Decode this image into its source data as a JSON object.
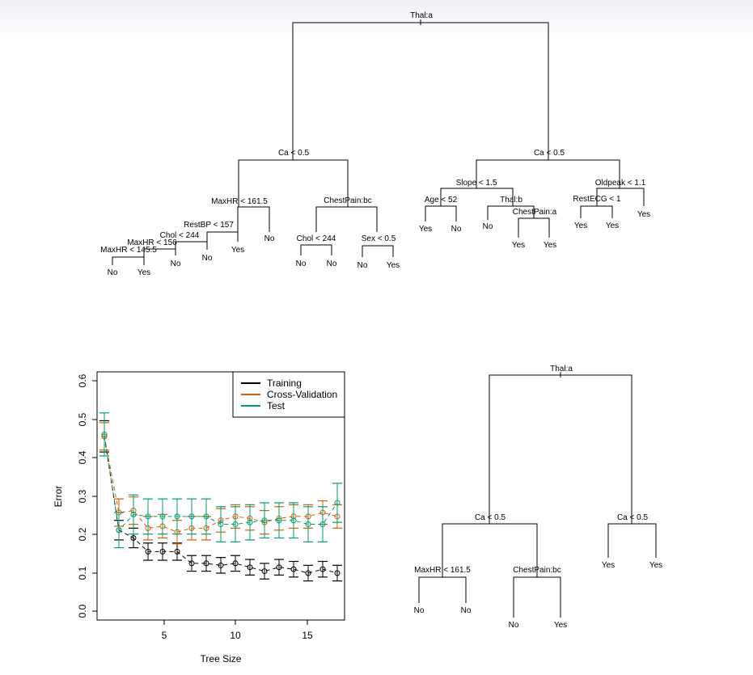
{
  "trees": {
    "full": {
      "root": "Thal:a",
      "left_split": "Ca < 0.5",
      "right_split": "Ca < 0.5",
      "maxhr": "MaxHR < 161.5",
      "chestpain_bc": "ChestPain:bc",
      "restbp": "RestBP < 157",
      "chol1": "Chol < 244",
      "maxhr156": "MaxHR < 156",
      "maxhr145": "MaxHR < 145.5",
      "chol2": "Chol < 244",
      "sex": "Sex < 0.5",
      "slope": "Slope < 1.5",
      "oldpeak": "Oldpeak < 1.1",
      "age": "Age < 52",
      "thalb": "Thal:b",
      "chestpain_a": "ChestPain:a",
      "restecg": "RestECG < 1",
      "leaves": [
        "No",
        "Yes",
        "No",
        "No",
        "Yes",
        "No",
        "No",
        "No",
        "No",
        "Yes",
        "Yes",
        "No",
        "No",
        "Yes",
        "Yes",
        "Yes",
        "Yes"
      ]
    },
    "pruned": {
      "root": "Thal:a",
      "left_split": "Ca < 0.5",
      "right_split": "Ca < 0.5",
      "maxhr": "MaxHR < 161.5",
      "chestpain_bc": "ChestPain:bc",
      "leaves": [
        "No",
        "No",
        "No",
        "Yes",
        "Yes",
        "Yes"
      ]
    }
  },
  "chart_data": {
    "type": "line",
    "xlabel": "Tree Size",
    "ylabel": "Error",
    "xlim": [
      0.5,
      17.5
    ],
    "ylim": [
      -0.01,
      0.625
    ],
    "x_ticks": [
      "5",
      "10",
      "15"
    ],
    "y_ticks": [
      "0.0",
      "0.1",
      "0.2",
      "0.3",
      "0.4",
      "0.5",
      "0.6"
    ],
    "legend_position": "top-right",
    "x": [
      1,
      2,
      3,
      4,
      5,
      6,
      7,
      8,
      9,
      10,
      11,
      12,
      13,
      14,
      15,
      16,
      17
    ],
    "series": [
      {
        "name": "Training",
        "color": "#000000",
        "values": [
          0.46,
          0.22,
          0.2,
          0.165,
          0.165,
          0.165,
          0.135,
          0.135,
          0.13,
          0.135,
          0.125,
          0.115,
          0.125,
          0.12,
          0.11,
          0.12,
          0.11
        ],
        "err": [
          0.04,
          0.025,
          0.025,
          0.022,
          0.022,
          0.022,
          0.02,
          0.02,
          0.02,
          0.02,
          0.02,
          0.02,
          0.02,
          0.02,
          0.02,
          0.02,
          0.02
        ]
      },
      {
        "name": "Cross-Validation",
        "color": "#D55E00",
        "values": [
          0.46,
          0.265,
          0.27,
          0.225,
          0.23,
          0.215,
          0.225,
          0.225,
          0.245,
          0.255,
          0.25,
          0.24,
          0.25,
          0.255,
          0.255,
          0.265,
          0.255
        ],
        "err": [
          0.035,
          0.035,
          0.035,
          0.03,
          0.03,
          0.03,
          0.03,
          0.03,
          0.03,
          0.03,
          0.03,
          0.03,
          0.03,
          0.03,
          0.03,
          0.03,
          0.03
        ]
      },
      {
        "name": "Test",
        "color": "#009E73",
        "values": [
          0.465,
          0.22,
          0.26,
          0.255,
          0.255,
          0.255,
          0.255,
          0.255,
          0.235,
          0.235,
          0.24,
          0.245,
          0.245,
          0.245,
          0.235,
          0.235,
          0.29
        ],
        "err": [
          0.055,
          0.045,
          0.05,
          0.045,
          0.045,
          0.045,
          0.045,
          0.045,
          0.045,
          0.045,
          0.045,
          0.045,
          0.045,
          0.045,
          0.045,
          0.045,
          0.05
        ]
      }
    ]
  }
}
